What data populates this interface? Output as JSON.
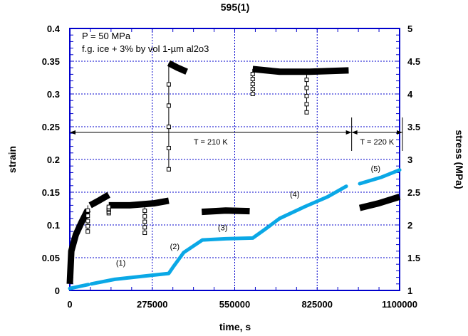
{
  "chart_data": {
    "type": "line",
    "title": "595(1)",
    "xlabel": "time, s",
    "ylabel": "strain",
    "y2label": "stress (MPa)",
    "xlim": [
      0,
      1100000
    ],
    "ylim": [
      0,
      0.4
    ],
    "y2lim": [
      1,
      5
    ],
    "xticks": [
      "0",
      "275000",
      "550000",
      "825000",
      "1100000"
    ],
    "xtick_values": [
      0,
      275000,
      550000,
      825000,
      1100000
    ],
    "yticks": [
      "0",
      "0.05",
      "0.1",
      "0.15",
      "0.2",
      "0.25",
      "0.3",
      "0.35",
      "0.4"
    ],
    "ytick_values": [
      0,
      0.05,
      0.1,
      0.15,
      0.2,
      0.25,
      0.3,
      0.35,
      0.4
    ],
    "y2ticks": [
      "1",
      "1.5",
      "2",
      "2.5",
      "3",
      "3.5",
      "4",
      "4.5",
      "5"
    ],
    "y2tick_values": [
      1,
      1.5,
      2,
      2.5,
      3,
      3.5,
      4,
      4.5,
      5
    ],
    "grid": true,
    "annotations": [
      "P = 50 MPa",
      "f.g. ice + 3% by vol 1-µm al2o3"
    ],
    "temperature_labels": [
      {
        "text": "T = 210 K",
        "from": 0,
        "to": 940000
      },
      {
        "text": "T = 220 K",
        "from": 940000,
        "to": 1100000
      }
    ],
    "segment_labels": [
      {
        "text": "(1)",
        "x": 170000,
        "y": 0.038
      },
      {
        "text": "(2)",
        "x": 350000,
        "y": 0.063
      },
      {
        "text": "(3)",
        "x": 510000,
        "y": 0.092
      },
      {
        "text": "(4)",
        "x": 750000,
        "y": 0.143
      },
      {
        "text": "(5)",
        "x": 1020000,
        "y": 0.182
      }
    ],
    "strain_series": {
      "name": "strain",
      "color": "#0aa8e6",
      "segments": [
        [
          [
            0,
            0.003
          ],
          [
            62000,
            0.009
          ]
        ],
        [
          [
            72000,
            0.01
          ],
          [
            150000,
            0.017
          ],
          [
            250000,
            0.022
          ],
          [
            330000,
            0.026
          ],
          [
            345000,
            0.036
          ],
          [
            380000,
            0.058
          ],
          [
            442000,
            0.077
          ],
          [
            520000,
            0.079
          ],
          [
            610000,
            0.08
          ],
          [
            650000,
            0.093
          ],
          [
            700000,
            0.11
          ],
          [
            784000,
            0.128
          ],
          [
            860000,
            0.143
          ],
          [
            922000,
            0.159
          ]
        ],
        [
          [
            967000,
            0.163
          ],
          [
            1040000,
            0.173
          ],
          [
            1100000,
            0.184
          ]
        ]
      ]
    },
    "stress_series": {
      "name": "stress",
      "color": "#000000",
      "segments": [
        [
          [
            0,
            1.1
          ],
          [
            5000,
            1.6
          ],
          [
            20000,
            1.85
          ],
          [
            40000,
            2.05
          ],
          [
            60000,
            2.23
          ]
        ],
        [
          [
            68000,
            2.3
          ],
          [
            100000,
            2.38
          ],
          [
            130000,
            2.46
          ]
        ],
        [
          [
            130000,
            2.3
          ],
          [
            200000,
            2.3
          ],
          [
            280000,
            2.33
          ],
          [
            330000,
            2.37
          ]
        ],
        [
          [
            330000,
            4.47
          ],
          [
            360000,
            4.4
          ],
          [
            390000,
            4.34
          ]
        ],
        [
          [
            440000,
            2.2
          ],
          [
            520000,
            2.22
          ],
          [
            600000,
            2.21
          ]
        ],
        [
          [
            610000,
            4.38
          ],
          [
            700000,
            4.34
          ],
          [
            800000,
            4.34
          ],
          [
            930000,
            4.36
          ]
        ],
        [
          [
            967000,
            2.26
          ],
          [
            1030000,
            2.33
          ],
          [
            1100000,
            2.43
          ]
        ]
      ],
      "transients": [
        {
          "x": 330000,
          "from": 2.85,
          "to": 4.47
        },
        {
          "x": 610000,
          "from": 4.0,
          "to": 4.38
        },
        {
          "x": 790000,
          "from": 3.72,
          "to": 4.34
        },
        {
          "x": 60000,
          "from": 1.9,
          "to": 2.3
        },
        {
          "x": 250000,
          "from": 1.88,
          "to": 2.3
        },
        {
          "x": 130000,
          "from": 2.18,
          "to": 2.3
        }
      ]
    }
  }
}
